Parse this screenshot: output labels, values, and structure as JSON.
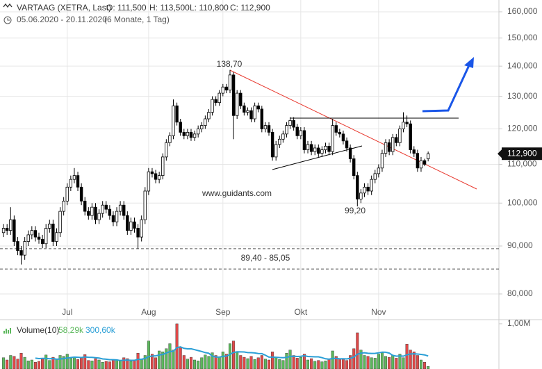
{
  "header": {
    "title": "VARTAAG (XETRA, Last)",
    "open": "O: 111,500",
    "high": "H: 113,500",
    "low": "L: 110,800",
    "close": "C: 112,900",
    "range": "05.06.2020 - 20.11.2020",
    "period": "(6 Monate, 1 Tag)"
  },
  "chart_data": [
    {
      "type": "candlestick",
      "log_scale": true,
      "grid": true,
      "up_color": "#ffffff",
      "down_color": "#000000",
      "xlim": [
        -1,
        140
      ],
      "ylim": [
        75100,
        164700
      ],
      "xticks": [
        {
          "value": 18,
          "label": "Jul"
        },
        {
          "value": 41,
          "label": "Aug"
        },
        {
          "value": 62,
          "label": "Sep"
        },
        {
          "value": 84,
          "label": "Okt"
        },
        {
          "value": 106,
          "label": "Nov"
        }
      ],
      "yticks": [
        {
          "value": 80000,
          "label": "80,000"
        },
        {
          "value": 90000,
          "label": "90,000"
        },
        {
          "value": 100000,
          "label": "100,000"
        },
        {
          "value": 110000,
          "label": "110,000"
        },
        {
          "value": 120000,
          "label": "120,000"
        },
        {
          "value": 130000,
          "label": "130,000"
        },
        {
          "value": 140000,
          "label": "140,000"
        },
        {
          "value": 150000,
          "label": "150,000"
        },
        {
          "value": 160000,
          "label": "160,000"
        }
      ],
      "open": [
        93000,
        94000,
        93500,
        96000,
        91000,
        89000,
        88000,
        91000,
        92500,
        93500,
        92000,
        91500,
        90500,
        94000,
        95000,
        91000,
        93000,
        98000,
        100500,
        104000,
        106000,
        107000,
        104000,
        100500,
        98000,
        97000,
        99000,
        96000,
        97500,
        99500,
        98500,
        97000,
        95500,
        98000,
        99500,
        97000,
        93500,
        95500,
        94000,
        92000,
        96000,
        103000,
        108000,
        107500,
        106000,
        107000,
        112000,
        116000,
        118000,
        127000,
        122000,
        119000,
        118000,
        119000,
        117500,
        118500,
        120000,
        121000,
        123000,
        125000,
        129000,
        128000,
        131000,
        133000,
        132000,
        137000,
        124000,
        131000,
        127000,
        125000,
        125500,
        123000,
        127000,
        126000,
        120000,
        121000,
        119000,
        112000,
        115500,
        117000,
        118500,
        121000,
        122500,
        120500,
        118000,
        119500,
        114000,
        115500,
        113500,
        114500,
        113000,
        114000,
        115000,
        113500,
        121000,
        119000,
        118500,
        116500,
        114500,
        111500,
        107000,
        101000,
        102500,
        104000,
        103000,
        106000,
        107500,
        109000,
        113000,
        116000,
        113500,
        117500,
        116000,
        120000,
        122000,
        121500,
        114000,
        113000,
        109000,
        111000,
        111500
      ],
      "high": [
        95000,
        95000,
        99000,
        97000,
        92000,
        90000,
        92000,
        93500,
        94500,
        94500,
        93000,
        92500,
        95000,
        96000,
        96000,
        94000,
        99000,
        101500,
        105000,
        107000,
        109000,
        108000,
        105000,
        101500,
        99000,
        100000,
        100000,
        98500,
        100500,
        100500,
        99500,
        98000,
        99000,
        100500,
        100500,
        98000,
        96500,
        96500,
        95000,
        97000,
        104000,
        109000,
        109000,
        108500,
        108000,
        113000,
        117000,
        119000,
        129000,
        128000,
        123000,
        120000,
        120000,
        120000,
        119500,
        121000,
        122000,
        124000,
        126000,
        130000,
        130000,
        132000,
        134000,
        134000,
        138700,
        138000,
        132000,
        132000,
        128000,
        126500,
        126500,
        128000,
        128000,
        127000,
        122000,
        122000,
        120000,
        116500,
        118000,
        119500,
        122000,
        123500,
        123500,
        121500,
        120500,
        120500,
        116500,
        116500,
        115500,
        115500,
        115000,
        116000,
        116000,
        123000,
        122000,
        120000,
        119500,
        117500,
        115500,
        112500,
        108000,
        103500,
        105000,
        105000,
        107000,
        108500,
        110000,
        114000,
        117000,
        117000,
        118500,
        118500,
        121000,
        125000,
        124000,
        122500,
        115000,
        114000,
        112000,
        111500,
        113500
      ],
      "low": [
        92000,
        92500,
        92500,
        90000,
        88000,
        86000,
        87000,
        90000,
        91500,
        91000,
        90500,
        89500,
        89500,
        93000,
        90000,
        90000,
        92000,
        97000,
        99500,
        103000,
        105000,
        103000,
        99500,
        97000,
        96000,
        96000,
        95000,
        95000,
        96500,
        97500,
        96000,
        94500,
        94500,
        97000,
        96000,
        92500,
        92500,
        93000,
        89400,
        91000,
        95000,
        102000,
        106500,
        105000,
        105000,
        106000,
        111000,
        115000,
        117000,
        121000,
        118000,
        117000,
        117000,
        116500,
        116500,
        117500,
        119000,
        120000,
        122000,
        124000,
        127000,
        127000,
        130000,
        131000,
        131000,
        117000,
        123000,
        126000,
        124000,
        124000,
        122000,
        122000,
        125000,
        119000,
        119000,
        118000,
        111000,
        111000,
        114500,
        116000,
        117500,
        120000,
        119500,
        117000,
        117000,
        113000,
        113000,
        112500,
        112500,
        112000,
        112000,
        113000,
        112500,
        112500,
        118000,
        117500,
        115500,
        113500,
        110500,
        106000,
        99200,
        100000,
        101500,
        102000,
        102000,
        105000,
        106500,
        108000,
        112000,
        112500,
        112500,
        115000,
        115000,
        119000,
        120500,
        113000,
        112000,
        108000,
        108000,
        109500,
        110800
      ],
      "close": [
        94000,
        93500,
        96000,
        91000,
        89000,
        88000,
        91000,
        92500,
        93500,
        92000,
        91500,
        90500,
        94000,
        95000,
        91000,
        93000,
        98000,
        100500,
        104000,
        106000,
        107000,
        104000,
        100500,
        98000,
        97000,
        99000,
        96000,
        97500,
        99500,
        98500,
        97000,
        95500,
        98000,
        99500,
        97000,
        93500,
        95500,
        94000,
        92000,
        96000,
        103000,
        108000,
        107500,
        106000,
        107000,
        112000,
        116000,
        118000,
        127000,
        122000,
        119000,
        118000,
        119000,
        117500,
        118500,
        120000,
        121000,
        123000,
        125000,
        129000,
        128000,
        131000,
        133000,
        132000,
        137000,
        124000,
        131000,
        127000,
        125000,
        125500,
        123000,
        127000,
        126000,
        120000,
        121000,
        119000,
        112000,
        115500,
        117000,
        118500,
        121000,
        122500,
        120500,
        118000,
        119500,
        114000,
        115500,
        113500,
        114500,
        113000,
        114000,
        115000,
        113500,
        121000,
        119000,
        118500,
        116500,
        114500,
        111500,
        107000,
        101000,
        102500,
        104000,
        103000,
        106000,
        107500,
        109000,
        113000,
        116000,
        113500,
        117500,
        116000,
        120000,
        122000,
        121500,
        114000,
        113000,
        109000,
        111000,
        110000,
        112900
      ],
      "last_price": {
        "value": 112900,
        "label": "112,900"
      },
      "hlines": [
        {
          "value": 89400,
          "color": "#555555"
        },
        {
          "value": 85050,
          "color": "#555555"
        }
      ],
      "annotations": [
        "138,70",
        "99,20",
        "www.guidants.com",
        "89,40 - 85,05"
      ]
    },
    {
      "type": "bar",
      "title": "Volume(10)",
      "value_label": "58,29k",
      "avg_label": "300,60k",
      "up_color": "#5cb85c",
      "down_color": "#e04848",
      "avg_color": "#2a9fd6",
      "xlim": [
        -1,
        140
      ],
      "ylim": [
        0,
        1060000
      ],
      "yticks": [
        {
          "value": 1000000,
          "label": "1,00M"
        }
      ],
      "values": [
        250000,
        200000,
        300000,
        280000,
        220000,
        350000,
        260000,
        180000,
        200000,
        150000,
        170000,
        230000,
        310000,
        190000,
        260000,
        220000,
        300000,
        280000,
        330000,
        240000,
        260000,
        210000,
        250000,
        320000,
        190000,
        180000,
        230000,
        200000,
        150000,
        170000,
        160000,
        210000,
        200000,
        180000,
        250000,
        230000,
        170000,
        200000,
        350000,
        220000,
        300000,
        620000,
        330000,
        250000,
        400000,
        380000,
        450000,
        560000,
        420000,
        1000000,
        480000,
        300000,
        220000,
        260000,
        200000,
        180000,
        250000,
        310000,
        280000,
        360000,
        300000,
        270000,
        380000,
        330000,
        560000,
        620000,
        380000,
        300000,
        260000,
        230000,
        280000,
        210000,
        250000,
        300000,
        220000,
        200000,
        380000,
        260000,
        210000,
        190000,
        350000,
        420000,
        300000,
        240000,
        260000,
        330000,
        200000,
        230000,
        170000,
        190000,
        160000,
        180000,
        210000,
        400000,
        280000,
        220000,
        230000,
        190000,
        300000,
        450000,
        800000,
        420000,
        300000,
        280000,
        250000,
        240000,
        330000,
        360000,
        280000,
        260000,
        300000,
        240000,
        330000,
        250000,
        550000,
        420000,
        380000,
        300000,
        200000,
        150000,
        58290
      ]
    }
  ]
}
